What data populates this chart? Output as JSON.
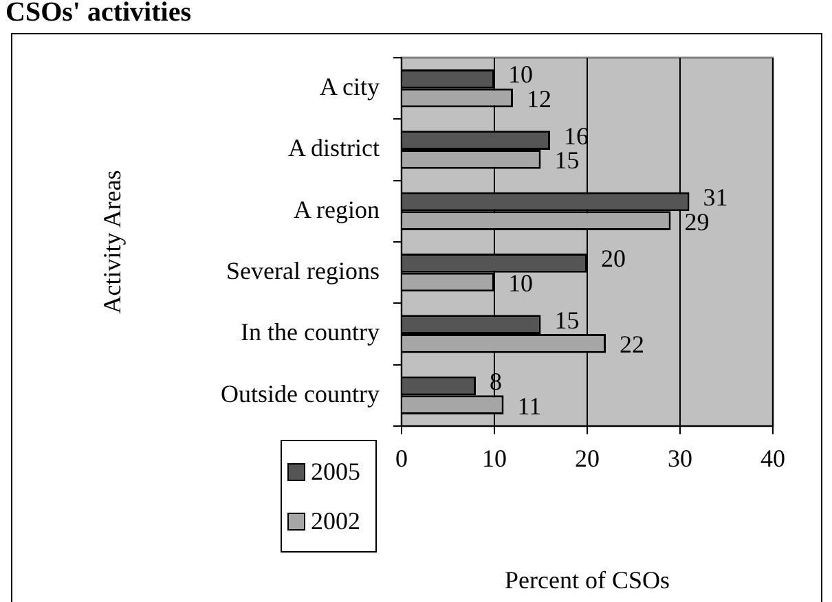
{
  "chart_data": {
    "type": "bar",
    "orientation": "horizontal",
    "title": "CSOs' activities",
    "xlabel": "Percent of CSOs",
    "ylabel": "Activity Areas",
    "categories": [
      "A city",
      "A district",
      "A region",
      "Several regions",
      "In the country",
      "Outside country"
    ],
    "series": [
      {
        "name": "2005",
        "color": "#555555",
        "values": [
          10,
          16,
          31,
          20,
          15,
          8
        ]
      },
      {
        "name": "2002",
        "color": "#a6a6a6",
        "values": [
          12,
          15,
          29,
          10,
          22,
          11
        ]
      }
    ],
    "xlim": [
      0,
      40
    ],
    "xticks": [
      0,
      10,
      20,
      30,
      40
    ],
    "grid": "x",
    "legend": "bottom left",
    "data_labels": true
  }
}
